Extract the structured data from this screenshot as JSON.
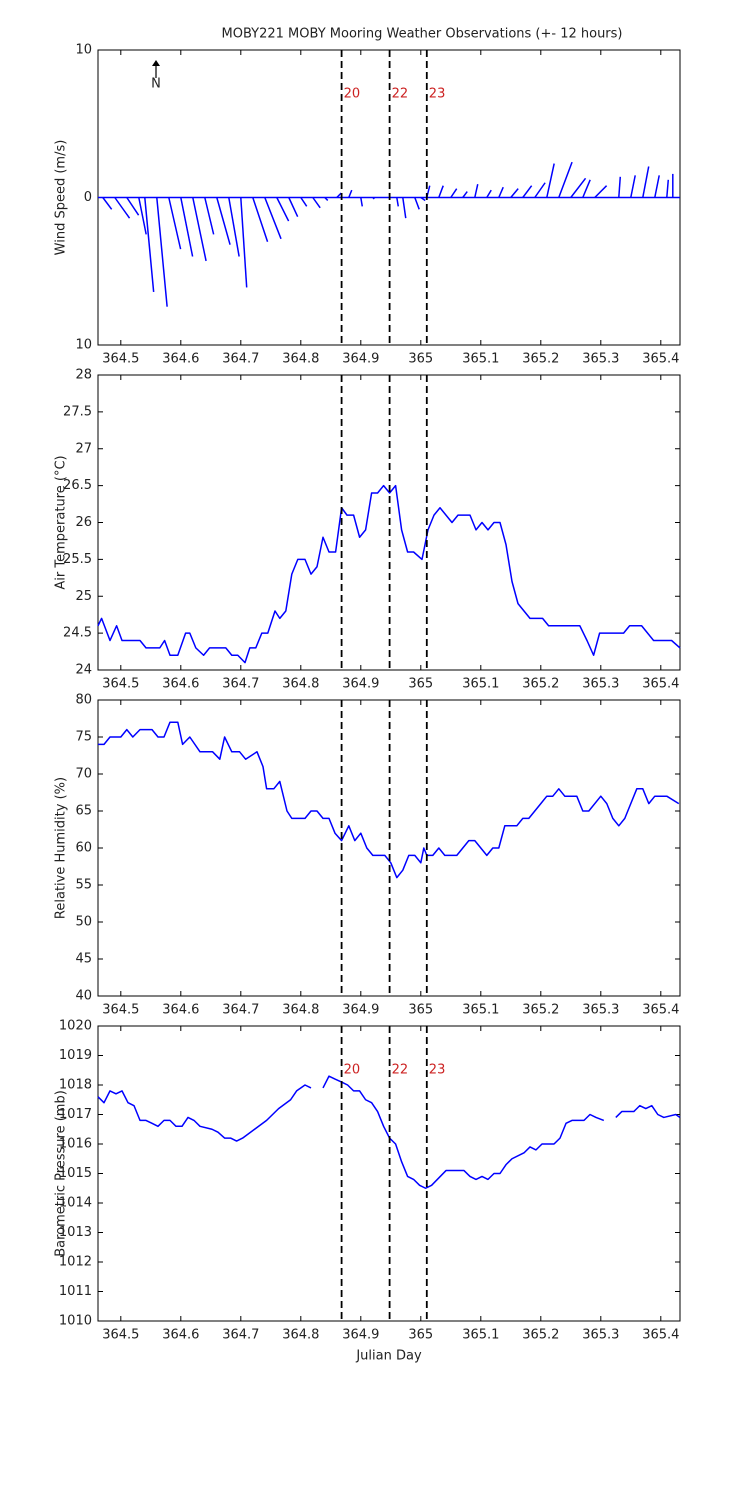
{
  "chart_data": [
    {
      "type": "wind",
      "title": "MOBY221 MOBY Mooring Weather Observations (+- 12 hours)",
      "y_label": "Wind Speed (m/s)",
      "color": "#0000ff",
      "xlim": [
        364.462,
        365.432
      ],
      "xticks": [
        364.5,
        364.6,
        364.7,
        364.8,
        364.9,
        365,
        365.1,
        365.2,
        365.3,
        365.4
      ],
      "ylim": [
        -10,
        10
      ],
      "yticks": [
        {
          "value": -10,
          "label": "10"
        },
        0,
        10
      ],
      "vlines": [
        {
          "value": 364.868,
          "label": "20"
        },
        {
          "value": 364.948,
          "label": "22"
        },
        {
          "value": 365.01,
          "label": "23"
        }
      ],
      "x": [
        364.47,
        364.49,
        364.51,
        364.53,
        364.54,
        364.56,
        364.58,
        364.6,
        364.62,
        364.64,
        364.66,
        364.68,
        364.7,
        364.72,
        364.74,
        364.76,
        364.78,
        364.8,
        364.82,
        364.84,
        364.86,
        364.88,
        364.9,
        364.92,
        364.96,
        364.97,
        364.99,
        365.0,
        365.01,
        365.03,
        365.05,
        365.07,
        365.09,
        365.11,
        365.13,
        365.15,
        365.17,
        365.19,
        365.21,
        365.23,
        365.25,
        365.27,
        365.29,
        365.33,
        365.35,
        365.37,
        365.39,
        365.41,
        365.42
      ],
      "u": [
        0.6,
        1.0,
        0.8,
        0.5,
        0.6,
        0.7,
        0.8,
        0.8,
        0.9,
        0.6,
        0.9,
        0.7,
        0.4,
        1.0,
        1.1,
        0.8,
        0.6,
        0.4,
        0.5,
        0.2,
        0.3,
        0.2,
        0.1,
        0.1,
        0.1,
        0.2,
        0.3,
        0.3,
        0.2,
        0.3,
        0.4,
        0.3,
        0.2,
        0.3,
        0.3,
        0.5,
        0.6,
        0.7,
        0.5,
        0.9,
        1.0,
        0.5,
        0.8,
        0.1,
        0.3,
        0.4,
        0.3,
        0.1,
        0.0
      ],
      "values": [
        -0.8,
        -1.4,
        -1.2,
        -2.5,
        -6.4,
        -7.4,
        -3.5,
        -4.0,
        -4.3,
        -2.5,
        -3.2,
        -4.0,
        -6.1,
        -3.0,
        -2.8,
        -1.6,
        -1.3,
        -0.6,
        -0.7,
        -0.2,
        0.3,
        0.5,
        -0.6,
        -0.1,
        -0.6,
        -1.4,
        -0.8,
        -0.2,
        0.8,
        0.8,
        0.6,
        0.4,
        0.9,
        0.5,
        0.7,
        0.6,
        0.8,
        1.0,
        2.3,
        2.4,
        1.3,
        1.2,
        0.8,
        1.4,
        1.5,
        2.1,
        1.5,
        1.2,
        1.6
      ]
    },
    {
      "type": "line",
      "y_label": "Air Temperature (°C)",
      "color": "#0000ff",
      "xlim": [
        364.462,
        365.432
      ],
      "xticks": [
        364.5,
        364.6,
        364.7,
        364.8,
        364.9,
        365,
        365.1,
        365.2,
        365.3,
        365.4
      ],
      "ylim": [
        24,
        28
      ],
      "yticks": [
        24,
        24.5,
        25,
        25.5,
        26,
        26.5,
        27,
        27.5,
        28
      ],
      "vlines": [
        364.868,
        364.948,
        365.01
      ],
      "x": [
        364.462,
        364.468,
        364.482,
        364.493,
        364.502,
        364.532,
        364.542,
        364.565,
        364.573,
        364.582,
        364.595,
        364.608,
        364.615,
        364.625,
        364.638,
        364.648,
        364.675,
        364.685,
        364.695,
        364.707,
        364.715,
        364.725,
        364.735,
        364.745,
        364.757,
        364.765,
        364.775,
        364.785,
        364.795,
        364.807,
        364.817,
        364.827,
        364.837,
        364.847,
        364.858,
        364.868,
        364.877,
        364.888,
        364.898,
        364.908,
        364.918,
        364.928,
        364.938,
        364.948,
        364.958,
        364.968,
        364.978,
        364.988,
        365.002,
        365.012,
        365.022,
        365.032,
        365.042,
        365.052,
        365.062,
        365.082,
        365.092,
        365.102,
        365.112,
        365.122,
        365.132,
        365.142,
        365.152,
        365.162,
        365.172,
        365.182,
        365.203,
        365.213,
        365.265,
        365.277,
        365.288,
        365.298,
        365.338,
        365.348,
        365.368,
        365.378,
        365.388,
        365.418,
        365.432
      ],
      "values": [
        24.6,
        24.7,
        24.4,
        24.6,
        24.4,
        24.4,
        24.3,
        24.3,
        24.4,
        24.2,
        24.2,
        24.5,
        24.5,
        24.3,
        24.2,
        24.3,
        24.3,
        24.2,
        24.2,
        24.1,
        24.3,
        24.3,
        24.5,
        24.5,
        24.8,
        24.7,
        24.8,
        25.3,
        25.5,
        25.5,
        25.3,
        25.4,
        25.8,
        25.6,
        25.6,
        26.2,
        26.1,
        26.1,
        25.8,
        25.9,
        26.4,
        26.4,
        26.5,
        26.4,
        26.5,
        25.9,
        25.6,
        25.6,
        25.5,
        25.9,
        26.1,
        26.2,
        26.1,
        26.0,
        26.1,
        26.1,
        25.9,
        26.0,
        25.9,
        26.0,
        26.0,
        25.7,
        25.2,
        24.9,
        24.8,
        24.7,
        24.7,
        24.6,
        24.6,
        24.4,
        24.2,
        24.5,
        24.5,
        24.6,
        24.6,
        24.5,
        24.4,
        24.4,
        24.3
      ]
    },
    {
      "type": "line",
      "y_label": "Relative Humidity (%)",
      "color": "#0000ff",
      "xlim": [
        364.462,
        365.432
      ],
      "xticks": [
        364.5,
        364.6,
        364.7,
        364.8,
        364.9,
        365,
        365.1,
        365.2,
        365.3,
        365.4
      ],
      "ylim": [
        40,
        80
      ],
      "yticks": [
        40,
        45,
        50,
        55,
        60,
        65,
        70,
        75,
        80
      ],
      "vlines": [
        364.868,
        364.948,
        365.01
      ],
      "x": [
        364.462,
        364.472,
        364.482,
        364.5,
        364.51,
        364.52,
        364.532,
        364.552,
        364.562,
        364.572,
        364.582,
        364.595,
        364.603,
        364.615,
        364.632,
        364.653,
        364.665,
        364.673,
        364.685,
        364.698,
        364.708,
        364.727,
        364.737,
        364.743,
        364.755,
        364.765,
        364.777,
        364.785,
        364.807,
        364.817,
        364.827,
        364.837,
        364.847,
        364.857,
        364.868,
        364.88,
        364.89,
        364.9,
        364.91,
        364.92,
        364.94,
        364.95,
        364.96,
        364.97,
        364.98,
        364.99,
        365.0,
        365.005,
        365.01,
        365.02,
        365.03,
        365.04,
        365.06,
        365.07,
        365.08,
        365.09,
        365.1,
        365.11,
        365.12,
        365.13,
        365.14,
        365.16,
        365.17,
        365.18,
        365.2,
        365.21,
        365.22,
        365.23,
        365.24,
        365.26,
        365.27,
        365.28,
        365.3,
        365.31,
        365.32,
        365.33,
        365.34,
        365.36,
        365.37,
        365.38,
        365.39,
        365.41,
        365.43
      ],
      "values": [
        74,
        74,
        75,
        75,
        76,
        75,
        76,
        76,
        75,
        75,
        77,
        77,
        74,
        75,
        73,
        73,
        72,
        75,
        73,
        73,
        72,
        73,
        71,
        68,
        68,
        69,
        65,
        64,
        64,
        65,
        65,
        64,
        64,
        62,
        61,
        63,
        61,
        62,
        60,
        59,
        59,
        58,
        56,
        57,
        59,
        59,
        58,
        60,
        59,
        59,
        60,
        59,
        59,
        60,
        61,
        61,
        60,
        59,
        60,
        60,
        63,
        63,
        64,
        64,
        66,
        67,
        67,
        68,
        67,
        67,
        65,
        65,
        67,
        66,
        64,
        63,
        64,
        68,
        68,
        66,
        67,
        67,
        66
      ]
    },
    {
      "type": "line",
      "y_label": "Barometric Pressure (mb)",
      "x_label": "Julian Day",
      "color": "#0000ff",
      "xlim": [
        364.462,
        365.432
      ],
      "xticks": [
        364.5,
        364.6,
        364.7,
        364.8,
        364.9,
        365,
        365.1,
        365.2,
        365.3,
        365.4
      ],
      "ylim": [
        1010,
        1020
      ],
      "yticks": [
        1010,
        1011,
        1012,
        1013,
        1014,
        1015,
        1016,
        1017,
        1018,
        1019,
        1020
      ],
      "vlines": [
        {
          "value": 364.868,
          "label": "20"
        },
        {
          "value": 364.948,
          "label": "22"
        },
        {
          "value": 365.01,
          "label": "23"
        }
      ],
      "x": [
        364.462,
        364.472,
        364.482,
        364.492,
        364.502,
        364.512,
        364.522,
        364.532,
        364.542,
        364.552,
        364.562,
        364.572,
        364.582,
        364.592,
        364.602,
        364.612,
        364.622,
        364.632,
        364.652,
        364.662,
        364.673,
        364.683,
        364.693,
        364.703,
        364.723,
        364.743,
        364.763,
        364.783,
        364.793,
        364.807,
        364.817,
        364.827,
        364.837,
        364.847,
        364.857,
        364.868,
        364.878,
        364.888,
        364.898,
        364.908,
        364.918,
        364.928,
        364.938,
        364.948,
        364.958,
        364.968,
        364.978,
        364.988,
        364.998,
        365.008,
        365.018,
        365.042,
        365.072,
        365.082,
        365.092,
        365.102,
        365.112,
        365.122,
        365.132,
        365.142,
        365.152,
        365.172,
        365.182,
        365.192,
        365.202,
        365.222,
        365.232,
        365.242,
        365.252,
        365.272,
        365.282,
        365.292,
        365.305,
        365.315,
        365.325,
        365.335,
        365.355,
        365.365,
        365.375,
        365.385,
        365.395,
        365.405,
        365.425,
        365.432
      ],
      "values": [
        1017.6,
        1017.4,
        1017.8,
        1017.7,
        1017.8,
        1017.4,
        1017.3,
        1016.8,
        1016.8,
        1016.7,
        1016.6,
        1016.8,
        1016.8,
        1016.6,
        1016.6,
        1016.9,
        1016.8,
        1016.6,
        1016.5,
        1016.4,
        1016.2,
        1016.2,
        1016.1,
        1016.2,
        1016.5,
        1016.8,
        1017.2,
        1017.5,
        1017.8,
        1018.0,
        1017.9,
        null,
        1017.9,
        1018.3,
        1018.2,
        1018.1,
        1018.0,
        1017.8,
        1017.8,
        1017.5,
        1017.4,
        1017.1,
        1016.6,
        1016.2,
        1016.0,
        1015.4,
        1014.9,
        1014.8,
        1014.6,
        1014.5,
        1014.6,
        1015.1,
        1015.1,
        1014.9,
        1014.8,
        1014.9,
        1014.8,
        1015.0,
        1015.0,
        1015.3,
        1015.5,
        1015.7,
        1015.9,
        1015.8,
        1016.0,
        1016.0,
        1016.2,
        1016.7,
        1016.8,
        1016.8,
        1017.0,
        1016.9,
        1016.8,
        null,
        1016.9,
        1017.1,
        1017.1,
        1017.3,
        1017.2,
        1017.3,
        1017.0,
        1016.9,
        1017.0,
        1016.9
      ]
    }
  ]
}
